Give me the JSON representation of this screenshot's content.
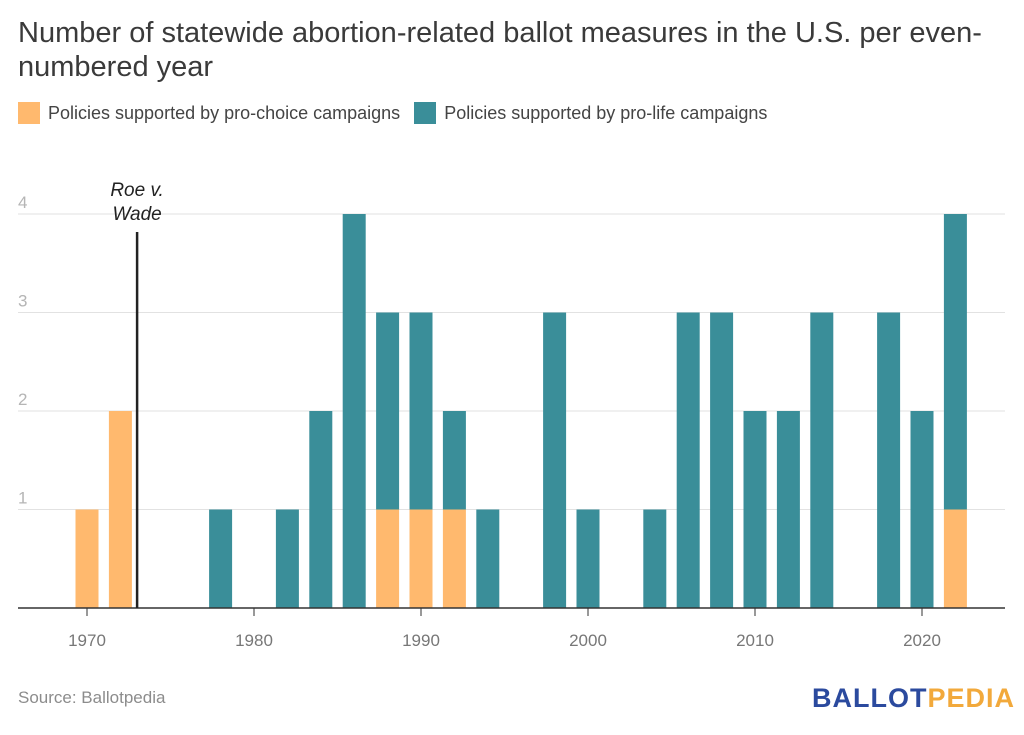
{
  "title": "Number of statewide abortion-related ballot measures in the U.S. per even-numbered year",
  "legend": {
    "pro_choice": "Policies supported by pro-choice campaigns",
    "pro_life": "Policies supported by pro-life campaigns"
  },
  "annotation": {
    "line1": "Roe v.",
    "line2": "Wade",
    "year": 1973
  },
  "source": "Source: Ballotpedia",
  "brand": {
    "part1": "BALLOT",
    "part2": "PEDIA"
  },
  "colors": {
    "pro_choice": "#ffb96e",
    "pro_life": "#3a8e99",
    "grid": "#e2e2e2",
    "axis": "#333333",
    "tick": "#b5b5b5",
    "xtick": "#777777"
  },
  "chart_data": {
    "type": "bar",
    "stacked": true,
    "x": [
      1970,
      1972,
      1974,
      1976,
      1978,
      1980,
      1982,
      1984,
      1986,
      1988,
      1990,
      1992,
      1994,
      1996,
      1998,
      2000,
      2002,
      2004,
      2006,
      2008,
      2010,
      2012,
      2014,
      2016,
      2018,
      2020,
      2022
    ],
    "series": [
      {
        "name": "Policies supported by pro-choice campaigns",
        "color": "#ffb96e",
        "values": [
          1,
          2,
          0,
          0,
          0,
          0,
          0,
          0,
          0,
          1,
          1,
          1,
          0,
          0,
          0,
          0,
          0,
          0,
          0,
          0,
          0,
          0,
          0,
          0,
          0,
          0,
          1
        ]
      },
      {
        "name": "Policies supported by pro-life campaigns",
        "color": "#3a8e99",
        "values": [
          0,
          0,
          0,
          0,
          1,
          0,
          1,
          2,
          4,
          2,
          2,
          1,
          1,
          0,
          3,
          1,
          0,
          1,
          3,
          3,
          2,
          2,
          3,
          0,
          3,
          2,
          3
        ]
      }
    ],
    "xticks": [
      1970,
      1980,
      1990,
      2000,
      2010,
      2020
    ],
    "yticks": [
      1,
      2,
      3,
      4
    ],
    "ylim": [
      0,
      4
    ],
    "xlim": [
      1967.9,
      2024.9
    ],
    "xlabel": "",
    "ylabel": "",
    "grid": true,
    "legend_position": "top-left"
  }
}
